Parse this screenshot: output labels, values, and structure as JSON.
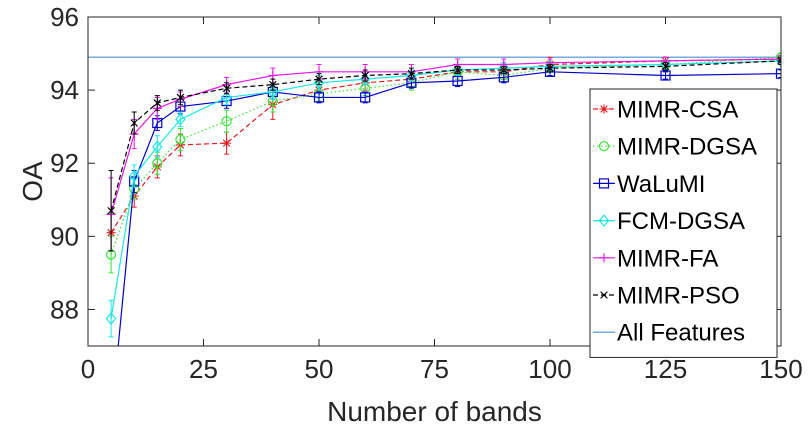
{
  "chart_data": {
    "type": "line",
    "xlabel": "Number of bands",
    "ylabel": "OA",
    "xlim": [
      0,
      150
    ],
    "ylim": [
      87,
      96
    ],
    "xticks": [
      0,
      25,
      50,
      75,
      100,
      125,
      150
    ],
    "yticks": [
      88,
      90,
      92,
      94,
      96
    ],
    "grid": false,
    "legend_position": "bottom-right",
    "x": [
      5,
      10,
      15,
      20,
      30,
      40,
      50,
      60,
      70,
      80,
      90,
      100,
      125,
      150
    ],
    "series": [
      {
        "name": "MIMR-CSA",
        "color": "#e6191e",
        "dash": "dashed",
        "marker": "asterisk",
        "values": [
          90.1,
          91.1,
          91.9,
          92.5,
          92.55,
          93.6,
          94.0,
          94.2,
          94.3,
          94.5,
          94.5,
          94.7,
          94.8,
          94.85
        ],
        "errors": [
          0.5,
          0.3,
          0.3,
          0.3,
          0.3,
          0.4,
          0.3,
          0.2,
          0.2,
          0.2,
          0.2,
          0.2,
          0.1,
          0.1
        ]
      },
      {
        "name": "MIMR-DGSA",
        "color": "#33e633",
        "dash": "dotted",
        "marker": "circle",
        "values": [
          89.5,
          91.3,
          92.0,
          92.65,
          93.15,
          93.7,
          93.9,
          94.05,
          94.2,
          94.5,
          94.4,
          94.6,
          94.7,
          94.9
        ],
        "errors": [
          0.5,
          0.3,
          0.3,
          0.3,
          0.3,
          0.3,
          0.2,
          0.2,
          0.2,
          0.2,
          0.2,
          0.2,
          0.1,
          0.1
        ]
      },
      {
        "name": "WaLuMI",
        "color": "#0000c8",
        "dash": "solid",
        "marker": "square",
        "values": [
          85.0,
          91.5,
          93.1,
          93.55,
          93.7,
          93.95,
          93.8,
          93.8,
          94.2,
          94.25,
          94.35,
          94.5,
          94.4,
          94.45
        ],
        "errors": [
          0.5,
          0.3,
          0.2,
          0.2,
          0.2,
          0.2,
          0.15,
          0.15,
          0.15,
          0.15,
          0.15,
          0.1,
          0.1,
          0.1
        ]
      },
      {
        "name": "FCM-DGSA",
        "color": "#19e6e6",
        "dash": "solid",
        "marker": "diamond",
        "values": [
          87.75,
          91.65,
          92.45,
          93.2,
          93.8,
          93.95,
          94.2,
          94.3,
          94.4,
          94.55,
          94.6,
          94.65,
          94.7,
          94.8
        ],
        "errors": [
          0.5,
          0.3,
          0.3,
          0.2,
          0.2,
          0.2,
          0.2,
          0.15,
          0.15,
          0.15,
          0.15,
          0.1,
          0.1,
          0.1
        ]
      },
      {
        "name": "MIMR-FA",
        "color": "#e619e6",
        "dash": "solid",
        "marker": "plus",
        "values": [
          90.6,
          92.8,
          93.5,
          93.75,
          94.15,
          94.4,
          94.5,
          94.5,
          94.5,
          94.7,
          94.7,
          94.75,
          94.8,
          94.85
        ],
        "errors": [
          1.0,
          0.4,
          0.3,
          0.2,
          0.2,
          0.2,
          0.2,
          0.2,
          0.2,
          0.15,
          0.15,
          0.1,
          0.1,
          0.1
        ]
      },
      {
        "name": "MIMR-PSO",
        "color": "#000000",
        "dash": "dashed",
        "marker": "x",
        "values": [
          90.7,
          93.1,
          93.65,
          93.8,
          94.05,
          94.15,
          94.3,
          94.4,
          94.45,
          94.55,
          94.55,
          94.6,
          94.65,
          94.8
        ],
        "errors": [
          1.1,
          0.3,
          0.2,
          0.2,
          0.15,
          0.15,
          0.15,
          0.15,
          0.15,
          0.1,
          0.1,
          0.1,
          0.1,
          0.1
        ]
      }
    ],
    "reference_line": {
      "name": "All Features",
      "color": "#4d8fd1",
      "value": 94.9
    }
  }
}
